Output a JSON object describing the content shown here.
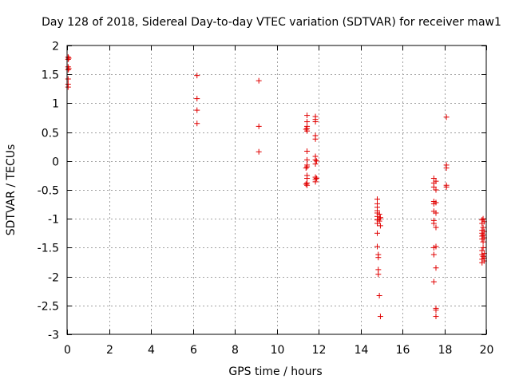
{
  "chart_data": {
    "type": "scatter",
    "title": "Day 128 of 2018, Sidereal Day-to-day VTEC variation (SDTVAR) for receiver maw1",
    "xlabel": "GPS time / hours",
    "ylabel": "SDTVAR / TECUs",
    "xlim": [
      0,
      20
    ],
    "ylim": [
      -3,
      2
    ],
    "xticks": [
      "0",
      "2",
      "4",
      "6",
      "8",
      "10",
      "12",
      "14",
      "16",
      "18",
      "20"
    ],
    "yticks": [
      "2",
      "1.5",
      "1",
      "0.5",
      "0",
      "-0.5",
      "-1",
      "-1.5",
      "-2",
      "-2.5",
      "-3"
    ],
    "grid": true,
    "marker": "+",
    "color": "#e00000",
    "series": [
      {
        "name": "SDTVAR",
        "points": [
          [
            0.05,
            1.8
          ],
          [
            0.05,
            1.76
          ],
          [
            0.05,
            1.63
          ],
          [
            0.05,
            1.58
          ],
          [
            0.05,
            1.42
          ],
          [
            0.05,
            1.33
          ],
          [
            0.05,
            1.28
          ],
          [
            0.08,
            1.78
          ],
          [
            0.08,
            1.6
          ],
          [
            6.2,
            1.48
          ],
          [
            6.2,
            1.08
          ],
          [
            6.2,
            0.88
          ],
          [
            6.2,
            0.65
          ],
          [
            9.15,
            1.39
          ],
          [
            9.15,
            0.6
          ],
          [
            9.15,
            0.16
          ],
          [
            11.45,
            0.79
          ],
          [
            11.45,
            0.68
          ],
          [
            11.45,
            0.6
          ],
          [
            11.45,
            0.56
          ],
          [
            11.45,
            0.52
          ],
          [
            11.45,
            0.17
          ],
          [
            11.45,
            0.02
          ],
          [
            11.45,
            -0.07
          ],
          [
            11.45,
            -0.1
          ],
          [
            11.45,
            -0.25
          ],
          [
            11.45,
            -0.3
          ],
          [
            11.45,
            -0.38
          ],
          [
            11.45,
            -0.42
          ],
          [
            11.4,
            0.55
          ],
          [
            11.4,
            -0.12
          ],
          [
            11.4,
            -0.4
          ],
          [
            11.85,
            0.77
          ],
          [
            11.85,
            0.72
          ],
          [
            11.85,
            0.68
          ],
          [
            11.85,
            0.44
          ],
          [
            11.85,
            0.38
          ],
          [
            11.85,
            0.08
          ],
          [
            11.85,
            0.02
          ],
          [
            11.85,
            -0.05
          ],
          [
            11.85,
            -0.28
          ],
          [
            11.85,
            -0.32
          ],
          [
            11.85,
            -0.36
          ],
          [
            11.9,
            0.0
          ],
          [
            11.9,
            -0.3
          ],
          [
            14.8,
            -0.66
          ],
          [
            14.8,
            -0.74
          ],
          [
            14.8,
            -0.8
          ],
          [
            14.8,
            -0.86
          ],
          [
            14.8,
            -0.9
          ],
          [
            14.8,
            -0.96
          ],
          [
            14.8,
            -1.02
          ],
          [
            14.8,
            -1.08
          ],
          [
            14.8,
            -1.25
          ],
          [
            14.8,
            -1.48
          ],
          [
            14.85,
            -1.62
          ],
          [
            14.85,
            -1.67
          ],
          [
            14.85,
            -1.88
          ],
          [
            14.85,
            -1.96
          ],
          [
            14.9,
            -0.92
          ],
          [
            14.9,
            -1.0
          ],
          [
            14.9,
            -1.04
          ],
          [
            14.9,
            -2.33
          ],
          [
            14.95,
            -2.69
          ],
          [
            14.95,
            -0.98
          ],
          [
            14.95,
            -1.12
          ],
          [
            17.5,
            -0.3
          ],
          [
            17.5,
            -0.38
          ],
          [
            17.5,
            -0.45
          ],
          [
            17.5,
            -0.7
          ],
          [
            17.5,
            -0.74
          ],
          [
            17.5,
            -0.87
          ],
          [
            17.5,
            -1.03
          ],
          [
            17.5,
            -1.08
          ],
          [
            17.5,
            -1.5
          ],
          [
            17.5,
            -1.62
          ],
          [
            17.5,
            -2.09
          ],
          [
            17.6,
            -0.35
          ],
          [
            17.6,
            -0.5
          ],
          [
            17.6,
            -0.72
          ],
          [
            17.6,
            -0.9
          ],
          [
            17.6,
            -1.15
          ],
          [
            17.6,
            -1.48
          ],
          [
            17.6,
            -1.85
          ],
          [
            17.6,
            -2.55
          ],
          [
            17.6,
            -2.58
          ],
          [
            17.6,
            -2.69
          ],
          [
            18.1,
            0.76
          ],
          [
            18.1,
            -0.07
          ],
          [
            18.1,
            -0.12
          ],
          [
            18.1,
            -0.42
          ],
          [
            18.1,
            -0.45
          ],
          [
            19.8,
            -1.02
          ],
          [
            19.8,
            -1.08
          ],
          [
            19.8,
            -1.2
          ],
          [
            19.8,
            -1.25
          ],
          [
            19.8,
            -1.3
          ],
          [
            19.8,
            -1.35
          ],
          [
            19.8,
            -1.55
          ],
          [
            19.8,
            -1.62
          ],
          [
            19.8,
            -1.7
          ],
          [
            19.8,
            -1.76
          ],
          [
            19.85,
            -1.0
          ],
          [
            19.85,
            -1.15
          ],
          [
            19.85,
            -1.28
          ],
          [
            19.85,
            -1.4
          ],
          [
            19.85,
            -1.5
          ],
          [
            19.85,
            -1.65
          ],
          [
            19.9,
            -1.05
          ],
          [
            19.9,
            -1.22
          ],
          [
            19.9,
            -1.33
          ],
          [
            19.9,
            -1.6
          ],
          [
            19.9,
            -1.68
          ],
          [
            19.9,
            -1.73
          ]
        ]
      }
    ]
  }
}
